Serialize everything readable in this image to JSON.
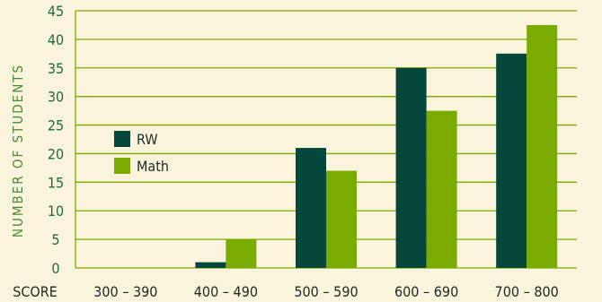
{
  "chart_data": {
    "type": "bar",
    "ylabel": "NUMBER OF STUDENTS",
    "xlabel": "SCORE",
    "categories": [
      "300 – 390",
      "400 – 490",
      "500 – 590",
      "600 – 690",
      "700 – 800"
    ],
    "series": [
      {
        "name": "RW",
        "color": "#05473b",
        "values": [
          0,
          1,
          21,
          35,
          37.5
        ]
      },
      {
        "name": "Math",
        "color": "#7aab00",
        "values": [
          0,
          5,
          17,
          27.5,
          42.5
        ]
      }
    ],
    "ylim": [
      0,
      45
    ],
    "yticks": [
      0,
      5,
      10,
      15,
      20,
      25,
      30,
      35,
      40,
      45
    ],
    "grid": true,
    "gridColor": "#7aab00",
    "legendPosition": "left"
  }
}
